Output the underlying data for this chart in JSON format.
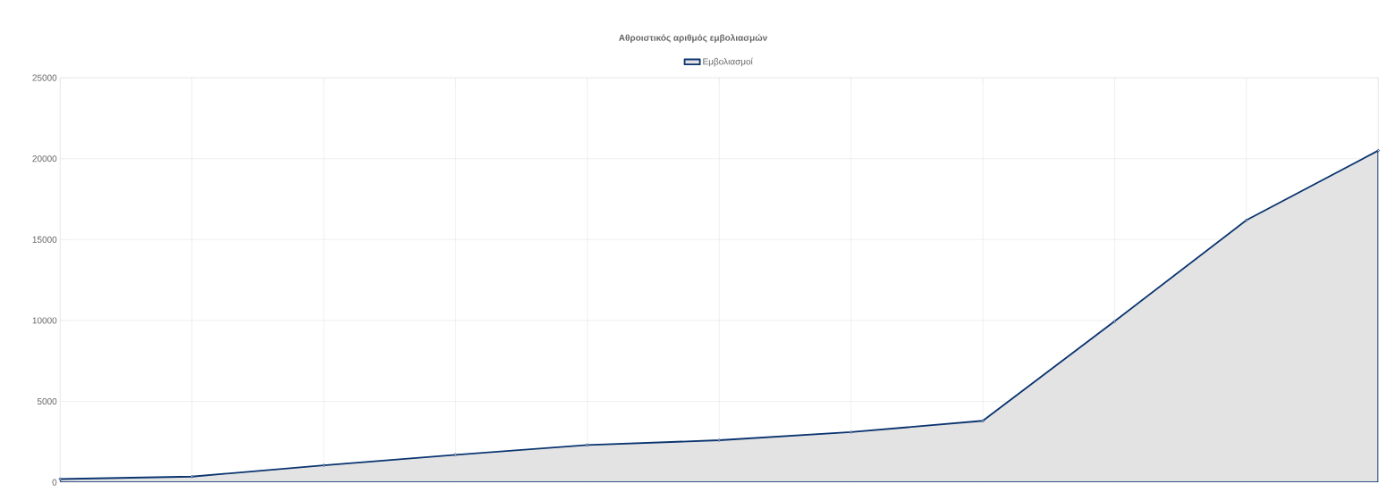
{
  "chart_data": {
    "type": "area",
    "title": "Αθροιστικός αριθμός εμβολιασμών",
    "categories": [
      null,
      null,
      null,
      null,
      null,
      null,
      null,
      null,
      null,
      null,
      null
    ],
    "series": [
      {
        "name": "Εμβολιασμοί",
        "color": "#0a3470",
        "values": [
          200,
          350,
          1050,
          1700,
          2300,
          2600,
          3100,
          3800,
          9950,
          16200,
          20500
        ]
      }
    ],
    "ylim": [
      0,
      25000
    ],
    "yticks": [
      0,
      5000,
      10000,
      15000,
      20000,
      25000
    ],
    "grid": true,
    "legend": "top",
    "marker": "circle",
    "line_style": "solid"
  }
}
